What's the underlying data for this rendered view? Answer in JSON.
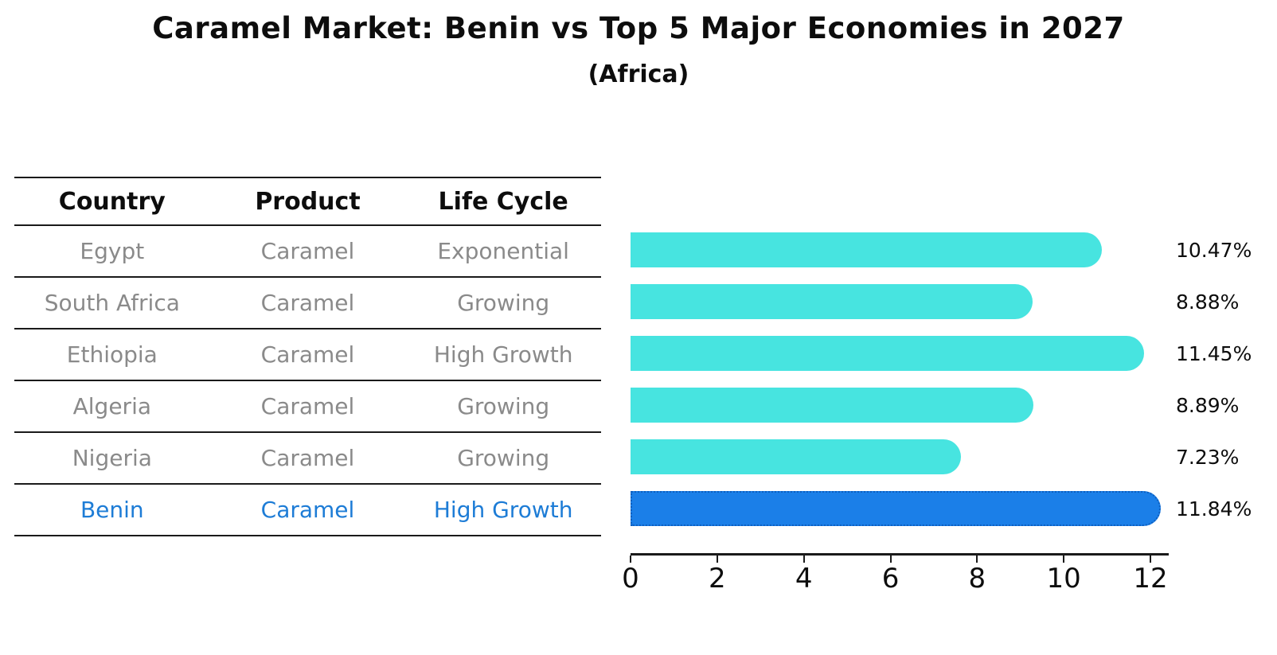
{
  "title": "Caramel Market: Benin vs Top 5 Major Economies in 2027",
  "subtitle": "(Africa)",
  "table": {
    "headers": [
      "Country",
      "Product",
      "Life Cycle"
    ],
    "rows": [
      {
        "country": "Egypt",
        "product": "Caramel",
        "life_cycle": "Exponential",
        "highlight": false
      },
      {
        "country": "South Africa",
        "product": "Caramel",
        "life_cycle": "Growing",
        "highlight": false
      },
      {
        "country": "Ethiopia",
        "product": "Caramel",
        "life_cycle": "High Growth",
        "highlight": false
      },
      {
        "country": "Algeria",
        "product": "Caramel",
        "life_cycle": "Growing",
        "highlight": false
      },
      {
        "country": "Nigeria",
        "product": "Caramel",
        "life_cycle": "Growing",
        "highlight": false
      },
      {
        "country": "Benin",
        "product": "Caramel",
        "life_cycle": "High Growth",
        "highlight": true
      }
    ]
  },
  "chart_data": {
    "type": "bar",
    "orientation": "horizontal",
    "title": "Caramel Market: Benin vs Top 5 Major Economies in 2027",
    "subtitle": "(Africa)",
    "categories": [
      "Egypt",
      "South Africa",
      "Ethiopia",
      "Algeria",
      "Nigeria",
      "Benin"
    ],
    "values": [
      10.47,
      8.88,
      11.45,
      8.89,
      7.23,
      11.84
    ],
    "labels": [
      "10.47%",
      "8.88%",
      "11.45%",
      "8.89%",
      "7.23%",
      "11.84%"
    ],
    "value_suffix": "%",
    "xticks": [
      0,
      2,
      4,
      6,
      8,
      10,
      12
    ],
    "xlim": [
      0,
      12.4
    ],
    "grid": false,
    "legend": false,
    "highlight_index": 5,
    "colors": {
      "bar": "#47e4e0",
      "bar_highlight": "#1b7fe8",
      "bar_highlight_border": "#0d5fc0",
      "highlight_text": "#1d7cd6",
      "muted_text": "#8a8a8a",
      "text": "#0d0d0d"
    }
  }
}
